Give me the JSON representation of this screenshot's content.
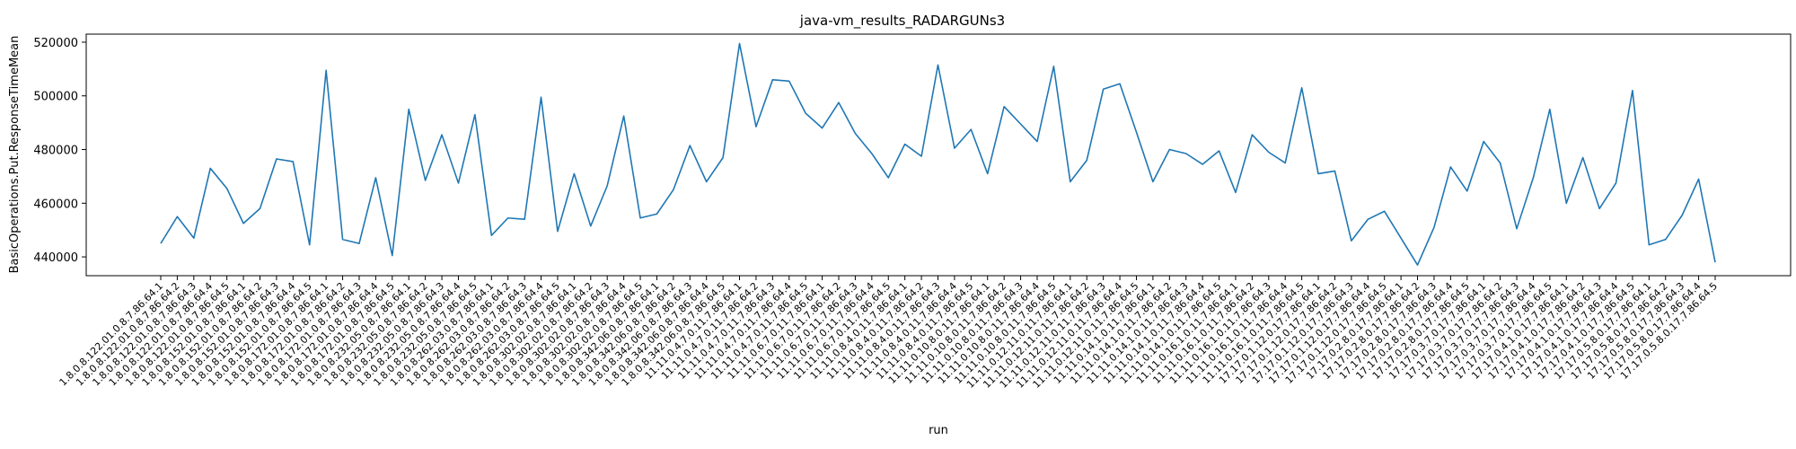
{
  "chart_data": {
    "type": "line",
    "title": "java-vm_results_RADARGUNs3",
    "xlabel": "run",
    "ylabel": "BasicOperations.Put.ResponseTimeMean",
    "ylim": [
      433000,
      523000
    ],
    "yticks": [
      440000,
      460000,
      480000,
      500000,
      520000
    ],
    "ytick_labels": [
      "440000",
      "460000",
      "480000",
      "500000",
      "520000"
    ],
    "grid": false,
    "series": [
      {
        "color": "#1f77b4",
        "x": [
          "1.8.0.8.122.01.0.8.7.86.64.1",
          "1.8.0.8.122.01.0.8.7.86.64.2",
          "1.8.0.8.122.01.0.8.7.86.64.3",
          "1.8.0.8.122.01.0.8.7.86.64.4",
          "1.8.0.8.122.01.0.8.7.86.64.5",
          "1.8.0.8.152.01.0.8.7.86.64.1",
          "1.8.0.8.152.01.0.8.7.86.64.2",
          "1.8.0.8.152.01.0.8.7.86.64.3",
          "1.8.0.8.152.01.0.8.7.86.64.4",
          "1.8.0.8.152.01.0.8.7.86.64.5",
          "1.8.0.8.172.01.0.8.7.86.64.1",
          "1.8.0.8.172.01.0.8.7.86.64.2",
          "1.8.0.8.172.01.0.8.7.86.64.3",
          "1.8.0.8.172.01.0.8.7.86.64.4",
          "1.8.0.8.172.01.0.8.7.86.64.5",
          "1.8.0.8.232.05.0.8.7.86.64.1",
          "1.8.0.8.232.05.0.8.7.86.64.2",
          "1.8.0.8.232.05.0.8.7.86.64.3",
          "1.8.0.8.232.05.0.8.7.86.64.4",
          "1.8.0.8.232.05.0.8.7.86.64.5",
          "1.8.0.8.262.03.0.8.7.86.64.1",
          "1.8.0.8.262.03.0.8.7.86.64.2",
          "1.8.0.8.262.03.0.8.7.86.64.3",
          "1.8.0.8.262.03.0.8.7.86.64.4",
          "1.8.0.8.262.03.0.8.7.86.64.5",
          "1.8.0.8.302.02.0.8.7.86.64.1",
          "1.8.0.8.302.02.0.8.7.86.64.2",
          "1.8.0.8.302.02.0.8.7.86.64.3",
          "1.8.0.8.302.02.0.8.7.86.64.4",
          "1.8.0.8.302.02.0.8.7.86.64.5",
          "1.8.0.8.342.06.0.8.7.86.64.1",
          "1.8.0.8.342.06.0.8.7.86.64.2",
          "1.8.0.8.342.06.0.8.7.86.64.3",
          "1.8.0.8.342.06.0.8.7.86.64.4",
          "1.8.0.8.342.06.0.8.7.86.64.5",
          "11.11.0.4.7.0.11.7.86.64.1",
          "11.11.0.4.7.0.11.7.86.64.2",
          "11.11.0.4.7.0.11.7.86.64.3",
          "11.11.0.4.7.0.11.7.86.64.4",
          "11.11.0.4.7.0.11.7.86.64.5",
          "11.11.0.6.7.0.11.7.86.64.1",
          "11.11.0.6.7.0.11.7.86.64.2",
          "11.11.0.6.7.0.11.7.86.64.3",
          "11.11.0.6.7.0.11.7.86.64.4",
          "11.11.0.6.7.0.11.7.86.64.5",
          "11.11.0.8.4.0.11.7.86.64.1",
          "11.11.0.8.4.0.11.7.86.64.2",
          "11.11.0.8.4.0.11.7.86.64.3",
          "11.11.0.8.4.0.11.7.86.64.4",
          "11.11.0.8.4.0.11.7.86.64.5",
          "11.11.0.10.8.0.11.7.86.64.1",
          "11.11.0.10.8.0.11.7.86.64.2",
          "11.11.0.10.8.0.11.7.86.64.3",
          "11.11.0.10.8.0.11.7.86.64.4",
          "11.11.0.10.8.0.11.7.86.64.5",
          "11.11.0.12.11.0.11.7.86.64.1",
          "11.11.0.12.11.0.11.7.86.64.2",
          "11.11.0.12.11.0.11.7.86.64.3",
          "11.11.0.12.11.0.11.7.86.64.4",
          "11.11.0.12.11.0.11.7.86.64.5",
          "11.11.0.14.1.0.11.7.86.64.1",
          "11.11.0.14.1.0.11.7.86.64.2",
          "11.11.0.14.1.0.11.7.86.64.3",
          "11.11.0.14.1.0.11.7.86.64.4",
          "11.11.0.14.1.0.11.7.86.64.5",
          "11.11.0.16.1.0.11.7.86.64.1",
          "11.11.0.16.1.0.11.7.86.64.2",
          "11.11.0.16.1.0.11.7.86.64.3",
          "11.11.0.16.1.0.11.7.86.64.4",
          "11.11.0.16.1.0.11.7.86.64.5",
          "17.17.0.1.12.0.17.7.86.64.1",
          "17.17.0.1.12.0.17.7.86.64.2",
          "17.17.0.1.12.0.17.7.86.64.3",
          "17.17.0.1.12.0.17.7.86.64.4",
          "17.17.0.1.12.0.17.7.86.64.5",
          "17.17.0.2.8.0.17.7.86.64.1",
          "17.17.0.2.8.0.17.7.86.64.2",
          "17.17.0.2.8.0.17.7.86.64.3",
          "17.17.0.2.8.0.17.7.86.64.4",
          "17.17.0.2.8.0.17.7.86.64.5",
          "17.17.0.3.7.0.17.7.86.64.1",
          "17.17.0.3.7.0.17.7.86.64.2",
          "17.17.0.3.7.0.17.7.86.64.3",
          "17.17.0.3.7.0.17.7.86.64.4",
          "17.17.0.3.7.0.17.7.86.64.5",
          "17.17.0.4.1.0.17.7.86.64.1",
          "17.17.0.4.1.0.17.7.86.64.2",
          "17.17.0.4.1.0.17.7.86.64.3",
          "17.17.0.4.1.0.17.7.86.64.4",
          "17.17.0.4.1.0.17.7.86.64.5",
          "17.17.0.5.8.0.17.7.86.64.1",
          "17.17.0.5.8.0.17.7.86.64.2",
          "17.17.0.5.8.0.17.7.86.64.3",
          "17.17.0.5.8.0.17.7.86.64.4",
          "17.17.0.5.8.0.17.7.86.64.5"
        ],
        "y": [
          445000,
          455000,
          447000,
          473000,
          465500,
          452500,
          458000,
          476500,
          475500,
          444500,
          509500,
          446500,
          445000,
          469500,
          440500,
          495000,
          468500,
          485500,
          467500,
          493000,
          448000,
          454500,
          454000,
          499500,
          449500,
          471000,
          451500,
          466500,
          492500,
          454500,
          456000,
          465000,
          481500,
          468000,
          477000,
          519500,
          488500,
          506000,
          505500,
          493500,
          488000,
          497500,
          486000,
          478500,
          469500,
          482000,
          477500,
          511500,
          480500,
          487500,
          471000,
          496000,
          489500,
          483000,
          511000,
          468000,
          476000,
          502500,
          504500,
          486500,
          468000,
          480000,
          478500,
          474500,
          479500,
          464000,
          485500,
          479000,
          475000,
          503000,
          471000,
          472000,
          446000,
          454000,
          457000,
          447000,
          437000,
          451000,
          473500,
          464500,
          483000,
          475000,
          450500,
          469500,
          495000,
          460000,
          477000,
          458000,
          467500,
          502000,
          444500,
          446500,
          455500,
          469000,
          438000
        ]
      }
    ]
  }
}
